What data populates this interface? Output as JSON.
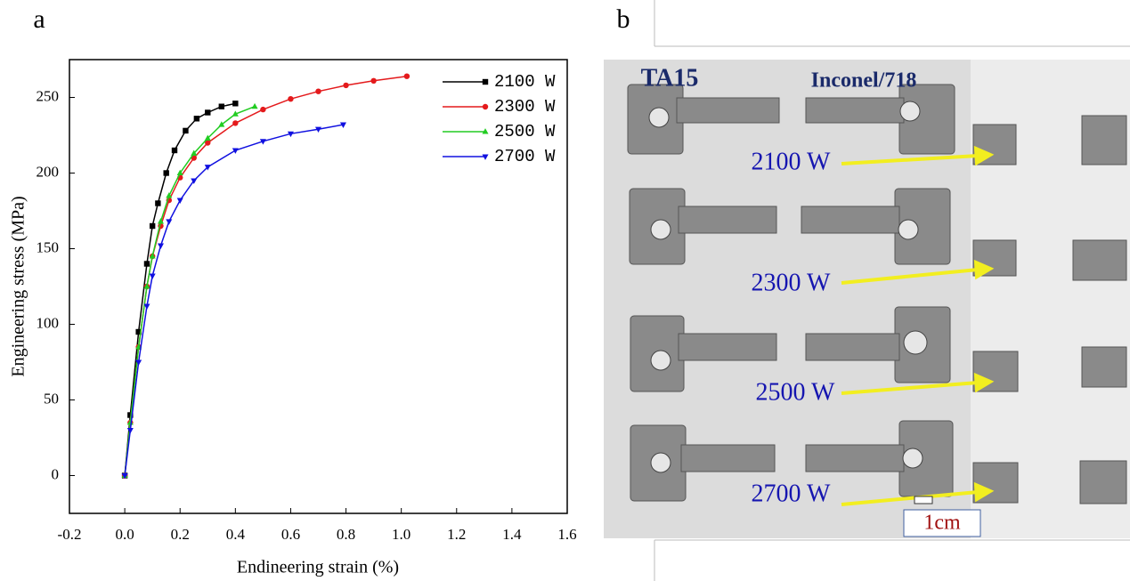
{
  "panel_labels": [
    "a",
    "b"
  ],
  "chart_data": {
    "type": "line",
    "xlabel": "Endineering strain (%)",
    "ylabel": "Engineering stress (MPa)",
    "xlim": [
      -0.2,
      1.6
    ],
    "ylim": [
      -25,
      275
    ],
    "xticks": [
      -0.2,
      {
        "value": 0,
        "label": "0.0"
      },
      0.2,
      0.4,
      0.6,
      0.8,
      {
        "value": 1,
        "label": "1.0"
      },
      1.2,
      1.4,
      1.6
    ],
    "yticks": [
      0,
      50,
      100,
      150,
      200,
      250
    ],
    "legend": "upper right",
    "series": [
      {
        "name": "2100 W",
        "color": "#000000",
        "marker": "square",
        "x": [
          0,
          0.02,
          0.05,
          0.08,
          0.1,
          0.12,
          0.15,
          0.18,
          0.22,
          0.26,
          0.3,
          0.35,
          0.4
        ],
        "values": [
          0,
          40,
          95,
          140,
          165,
          180,
          200,
          215,
          228,
          236,
          240,
          244,
          246
        ]
      },
      {
        "name": "2300 W",
        "color": "#e41a1c",
        "marker": "circle",
        "x": [
          0,
          0.02,
          0.05,
          0.08,
          0.1,
          0.13,
          0.16,
          0.2,
          0.25,
          0.3,
          0.4,
          0.5,
          0.6,
          0.7,
          0.8,
          0.9,
          1.02
        ],
        "values": [
          0,
          35,
          85,
          125,
          145,
          165,
          182,
          197,
          210,
          220,
          233,
          242,
          249,
          254,
          258,
          261,
          264
        ]
      },
      {
        "name": "2500 W",
        "color": "#22cc22",
        "marker": "triangle-up",
        "x": [
          0,
          0.02,
          0.05,
          0.08,
          0.1,
          0.13,
          0.16,
          0.2,
          0.25,
          0.3,
          0.35,
          0.4,
          0.47
        ],
        "values": [
          0,
          35,
          85,
          125,
          145,
          168,
          185,
          200,
          213,
          223,
          232,
          239,
          244
        ]
      },
      {
        "name": "2700 W",
        "color": "#1010e0",
        "marker": "triangle-down",
        "x": [
          0,
          0.02,
          0.05,
          0.08,
          0.1,
          0.13,
          0.16,
          0.2,
          0.25,
          0.3,
          0.4,
          0.5,
          0.6,
          0.7,
          0.79
        ],
        "values": [
          0,
          30,
          75,
          112,
          132,
          152,
          168,
          182,
          195,
          204,
          215,
          221,
          226,
          229,
          232
        ]
      }
    ]
  },
  "photo": {
    "materials": [
      "TA15",
      "Inconel/718"
    ],
    "powers": [
      "2100 W",
      "2300 W",
      "2500 W",
      "2700 W"
    ],
    "scale_bar": "1cm"
  }
}
